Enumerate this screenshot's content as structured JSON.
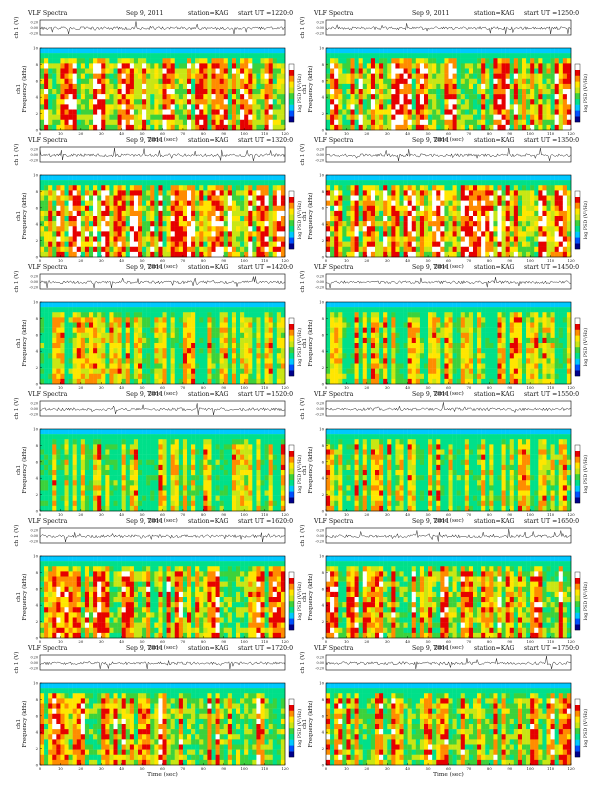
{
  "header": {
    "program": "VLF Spectra",
    "date": "Sep 9, 2011",
    "station": "station=KAG",
    "start_prefix": "start  UT  ="
  },
  "labels": {
    "waveform_ylabel": "ch 1 (V)",
    "spectrogram_ylabel_ch": "ch1",
    "spectrogram_ylabel": "Frequency (kHz)",
    "xlabel": "Time (sec)",
    "colorbar_label": "log PSD (V²/Hz)"
  },
  "colors": {
    "colormap": [
      "#00008b",
      "#0050ff",
      "#00c8ff",
      "#00e08a",
      "#3cd23c",
      "#c8e614",
      "#ffe600",
      "#ff8c00",
      "#e60000",
      "#ffffff"
    ]
  },
  "panels": [
    {
      "ut": "1220:0"
    },
    {
      "ut": "1250:0"
    },
    {
      "ut": "1320:0"
    },
    {
      "ut": "1350:0"
    },
    {
      "ut": "1420:0"
    },
    {
      "ut": "1450:0"
    },
    {
      "ut": "1520:0"
    },
    {
      "ut": "1550:0"
    },
    {
      "ut": "1620:0"
    },
    {
      "ut": "1650:0"
    },
    {
      "ut": "1720:0"
    },
    {
      "ut": "1750:0"
    }
  ],
  "chart_data": {
    "type": "heatmap",
    "x": {
      "label": "Time (sec)",
      "range": [
        0,
        120
      ],
      "ticks": [
        0,
        10,
        20,
        30,
        40,
        50,
        60,
        70,
        80,
        90,
        100,
        110,
        120
      ]
    },
    "y": {
      "label": "Frequency (kHz)",
      "range": [
        0,
        10
      ],
      "ticks": [
        0,
        2,
        4,
        6,
        8,
        10
      ]
    },
    "waveform": {
      "ylabel": "ch 1 (V)",
      "ticks": [
        0.2,
        0.0,
        -0.2
      ]
    },
    "colorbar": {
      "label": "log PSD (V²/Hz)",
      "levels": 10
    },
    "panel_count": 12,
    "grid": "6 rows x 2 columns"
  }
}
